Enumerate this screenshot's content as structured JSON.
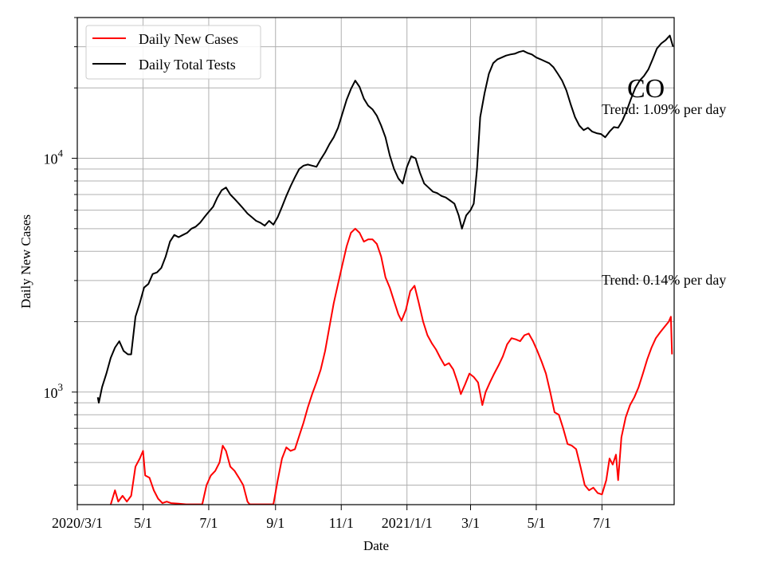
{
  "chart_data": {
    "type": "line",
    "title": "",
    "xlabel": "Date",
    "ylabel": "Daily New Cases",
    "yscale": "log",
    "grid": true,
    "legend_position": "top-left",
    "x_range": [
      "2020-03-01",
      "2021-09-06"
    ],
    "ylim": [
      330,
      40000
    ],
    "x_ticks": [
      {
        "date": "2020-03-01",
        "label": "2020/3/1"
      },
      {
        "date": "2020-05-01",
        "label": "5/1"
      },
      {
        "date": "2020-07-01",
        "label": "7/1"
      },
      {
        "date": "2020-09-01",
        "label": "9/1"
      },
      {
        "date": "2020-11-01",
        "label": "11/1"
      },
      {
        "date": "2021-01-01",
        "label": "2021/1/1"
      },
      {
        "date": "2021-03-01",
        "label": "3/1"
      },
      {
        "date": "2021-05-01",
        "label": "5/1"
      },
      {
        "date": "2021-07-01",
        "label": "7/1"
      }
    ],
    "y_ticks": [
      {
        "value": 1000,
        "base": "10",
        "exp": "3"
      },
      {
        "value": 10000,
        "base": "10",
        "exp": "4"
      }
    ],
    "series": [
      {
        "name": "Daily New Cases",
        "color": "#ff0000",
        "points": [
          [
            "2020-04-01",
            330
          ],
          [
            "2020-04-05",
            380
          ],
          [
            "2020-04-08",
            340
          ],
          [
            "2020-04-12",
            360
          ],
          [
            "2020-04-16",
            340
          ],
          [
            "2020-04-20",
            360
          ],
          [
            "2020-04-24",
            480
          ],
          [
            "2020-04-28",
            520
          ],
          [
            "2020-05-01",
            560
          ],
          [
            "2020-05-03",
            440
          ],
          [
            "2020-05-07",
            430
          ],
          [
            "2020-05-11",
            380
          ],
          [
            "2020-05-15",
            350
          ],
          [
            "2020-05-19",
            335
          ],
          [
            "2020-05-23",
            340
          ],
          [
            "2020-05-27",
            335
          ],
          [
            "2020-06-03",
            333
          ],
          [
            "2020-06-10",
            331
          ],
          [
            "2020-06-25",
            331
          ],
          [
            "2020-06-29",
            400
          ],
          [
            "2020-07-03",
            440
          ],
          [
            "2020-07-07",
            460
          ],
          [
            "2020-07-11",
            500
          ],
          [
            "2020-07-14",
            590
          ],
          [
            "2020-07-17",
            560
          ],
          [
            "2020-07-21",
            480
          ],
          [
            "2020-07-25",
            460
          ],
          [
            "2020-07-29",
            430
          ],
          [
            "2020-08-02",
            400
          ],
          [
            "2020-08-06",
            340
          ],
          [
            "2020-08-08",
            331
          ],
          [
            "2020-08-30",
            331
          ],
          [
            "2020-09-03",
            420
          ],
          [
            "2020-09-07",
            520
          ],
          [
            "2020-09-11",
            580
          ],
          [
            "2020-09-15",
            560
          ],
          [
            "2020-09-19",
            570
          ],
          [
            "2020-09-23",
            650
          ],
          [
            "2020-09-27",
            740
          ],
          [
            "2020-10-01",
            860
          ],
          [
            "2020-10-05",
            980
          ],
          [
            "2020-10-09",
            1100
          ],
          [
            "2020-10-13",
            1250
          ],
          [
            "2020-10-17",
            1500
          ],
          [
            "2020-10-21",
            1900
          ],
          [
            "2020-10-25",
            2400
          ],
          [
            "2020-10-29",
            2900
          ],
          [
            "2020-11-02",
            3500
          ],
          [
            "2020-11-06",
            4200
          ],
          [
            "2020-11-10",
            4800
          ],
          [
            "2020-11-14",
            5000
          ],
          [
            "2020-11-18",
            4800
          ],
          [
            "2020-11-22",
            4400
          ],
          [
            "2020-11-26",
            4500
          ],
          [
            "2020-11-30",
            4500
          ],
          [
            "2020-12-04",
            4300
          ],
          [
            "2020-12-08",
            3800
          ],
          [
            "2020-12-12",
            3100
          ],
          [
            "2020-12-16",
            2800
          ],
          [
            "2020-12-20",
            2450
          ],
          [
            "2020-12-24",
            2150
          ],
          [
            "2020-12-27",
            2020
          ],
          [
            "2020-12-31",
            2250
          ],
          [
            "2021-01-04",
            2700
          ],
          [
            "2021-01-08",
            2850
          ],
          [
            "2021-01-12",
            2400
          ],
          [
            "2021-01-16",
            2000
          ],
          [
            "2021-01-20",
            1750
          ],
          [
            "2021-01-24",
            1620
          ],
          [
            "2021-01-28",
            1520
          ],
          [
            "2021-02-01",
            1400
          ],
          [
            "2021-02-05",
            1300
          ],
          [
            "2021-02-09",
            1330
          ],
          [
            "2021-02-13",
            1250
          ],
          [
            "2021-02-17",
            1100
          ],
          [
            "2021-02-20",
            980
          ],
          [
            "2021-02-24",
            1080
          ],
          [
            "2021-02-28",
            1200
          ],
          [
            "2021-03-04",
            1160
          ],
          [
            "2021-03-08",
            1100
          ],
          [
            "2021-03-12",
            880
          ],
          [
            "2021-03-15",
            1000
          ],
          [
            "2021-03-19",
            1100
          ],
          [
            "2021-03-23",
            1200
          ],
          [
            "2021-03-27",
            1300
          ],
          [
            "2021-03-31",
            1420
          ],
          [
            "2021-04-04",
            1600
          ],
          [
            "2021-04-08",
            1700
          ],
          [
            "2021-04-12",
            1680
          ],
          [
            "2021-04-16",
            1650
          ],
          [
            "2021-04-20",
            1750
          ],
          [
            "2021-04-24",
            1780
          ],
          [
            "2021-04-28",
            1650
          ],
          [
            "2021-05-02",
            1500
          ],
          [
            "2021-05-06",
            1350
          ],
          [
            "2021-05-10",
            1200
          ],
          [
            "2021-05-14",
            1000
          ],
          [
            "2021-05-18",
            820
          ],
          [
            "2021-05-22",
            800
          ],
          [
            "2021-05-26",
            700
          ],
          [
            "2021-05-30",
            600
          ],
          [
            "2021-06-03",
            590
          ],
          [
            "2021-06-07",
            570
          ],
          [
            "2021-06-11",
            480
          ],
          [
            "2021-06-15",
            400
          ],
          [
            "2021-06-19",
            380
          ],
          [
            "2021-06-23",
            390
          ],
          [
            "2021-06-27",
            370
          ],
          [
            "2021-07-01",
            365
          ],
          [
            "2021-07-05",
            420
          ],
          [
            "2021-07-08",
            520
          ],
          [
            "2021-07-11",
            490
          ],
          [
            "2021-07-14",
            540
          ],
          [
            "2021-07-16",
            420
          ],
          [
            "2021-07-19",
            640
          ],
          [
            "2021-07-23",
            780
          ],
          [
            "2021-07-27",
            880
          ],
          [
            "2021-07-31",
            950
          ],
          [
            "2021-08-04",
            1050
          ],
          [
            "2021-08-08",
            1200
          ],
          [
            "2021-08-12",
            1380
          ],
          [
            "2021-08-16",
            1550
          ],
          [
            "2021-08-20",
            1700
          ],
          [
            "2021-08-24",
            1800
          ],
          [
            "2021-08-28",
            1900
          ],
          [
            "2021-09-01",
            2000
          ],
          [
            "2021-09-03",
            2100
          ],
          [
            "2021-09-04",
            1450
          ]
        ]
      },
      {
        "name": "Daily Total Tests",
        "color": "#000000",
        "points": [
          [
            "2020-03-20",
            950
          ],
          [
            "2020-03-21",
            900
          ],
          [
            "2020-03-24",
            1050
          ],
          [
            "2020-03-28",
            1200
          ],
          [
            "2020-04-01",
            1400
          ],
          [
            "2020-04-05",
            1550
          ],
          [
            "2020-04-09",
            1650
          ],
          [
            "2020-04-13",
            1500
          ],
          [
            "2020-04-17",
            1450
          ],
          [
            "2020-04-20",
            1450
          ],
          [
            "2020-04-24",
            2100
          ],
          [
            "2020-04-28",
            2400
          ],
          [
            "2020-05-02",
            2800
          ],
          [
            "2020-05-06",
            2900
          ],
          [
            "2020-05-10",
            3200
          ],
          [
            "2020-05-14",
            3250
          ],
          [
            "2020-05-18",
            3400
          ],
          [
            "2020-05-22",
            3800
          ],
          [
            "2020-05-26",
            4400
          ],
          [
            "2020-05-30",
            4700
          ],
          [
            "2020-06-03",
            4600
          ],
          [
            "2020-06-07",
            4700
          ],
          [
            "2020-06-11",
            4800
          ],
          [
            "2020-06-15",
            5000
          ],
          [
            "2020-06-19",
            5100
          ],
          [
            "2020-06-23",
            5300
          ],
          [
            "2020-06-27",
            5600
          ],
          [
            "2020-07-01",
            5900
          ],
          [
            "2020-07-05",
            6200
          ],
          [
            "2020-07-09",
            6800
          ],
          [
            "2020-07-13",
            7300
          ],
          [
            "2020-07-17",
            7500
          ],
          [
            "2020-07-21",
            7000
          ],
          [
            "2020-07-25",
            6700
          ],
          [
            "2020-07-29",
            6400
          ],
          [
            "2020-08-02",
            6100
          ],
          [
            "2020-08-06",
            5800
          ],
          [
            "2020-08-10",
            5600
          ],
          [
            "2020-08-14",
            5400
          ],
          [
            "2020-08-18",
            5300
          ],
          [
            "2020-08-22",
            5150
          ],
          [
            "2020-08-26",
            5400
          ],
          [
            "2020-08-30",
            5200
          ],
          [
            "2020-09-03",
            5600
          ],
          [
            "2020-09-07",
            6200
          ],
          [
            "2020-09-11",
            6900
          ],
          [
            "2020-09-15",
            7600
          ],
          [
            "2020-09-19",
            8300
          ],
          [
            "2020-09-23",
            9000
          ],
          [
            "2020-09-27",
            9300
          ],
          [
            "2020-10-01",
            9400
          ],
          [
            "2020-10-05",
            9300
          ],
          [
            "2020-10-09",
            9200
          ],
          [
            "2020-10-13",
            9900
          ],
          [
            "2020-10-17",
            10600
          ],
          [
            "2020-10-21",
            11500
          ],
          [
            "2020-10-25",
            12300
          ],
          [
            "2020-10-29",
            13500
          ],
          [
            "2020-11-02",
            15500
          ],
          [
            "2020-11-06",
            17800
          ],
          [
            "2020-11-10",
            19800
          ],
          [
            "2020-11-14",
            21500
          ],
          [
            "2020-11-18",
            20200
          ],
          [
            "2020-11-22",
            18000
          ],
          [
            "2020-11-26",
            16800
          ],
          [
            "2020-11-30",
            16200
          ],
          [
            "2020-12-04",
            15200
          ],
          [
            "2020-12-08",
            13800
          ],
          [
            "2020-12-12",
            12300
          ],
          [
            "2020-12-16",
            10300
          ],
          [
            "2020-12-20",
            9000
          ],
          [
            "2020-12-24",
            8200
          ],
          [
            "2020-12-28",
            7800
          ],
          [
            "2021-01-01",
            9200
          ],
          [
            "2021-01-05",
            10200
          ],
          [
            "2021-01-09",
            10000
          ],
          [
            "2021-01-13",
            8700
          ],
          [
            "2021-01-17",
            7800
          ],
          [
            "2021-01-21",
            7500
          ],
          [
            "2021-01-25",
            7200
          ],
          [
            "2021-01-29",
            7100
          ],
          [
            "2021-02-02",
            6900
          ],
          [
            "2021-02-06",
            6800
          ],
          [
            "2021-02-10",
            6600
          ],
          [
            "2021-02-14",
            6400
          ],
          [
            "2021-02-18",
            5700
          ],
          [
            "2021-02-21",
            5000
          ],
          [
            "2021-02-25",
            5700
          ],
          [
            "2021-03-01",
            6000
          ],
          [
            "2021-03-04",
            6400
          ],
          [
            "2021-03-07",
            9000
          ],
          [
            "2021-03-10",
            15000
          ],
          [
            "2021-03-14",
            19000
          ],
          [
            "2021-03-18",
            23000
          ],
          [
            "2021-03-22",
            25500
          ],
          [
            "2021-03-26",
            26500
          ],
          [
            "2021-03-30",
            27000
          ],
          [
            "2021-04-03",
            27500
          ],
          [
            "2021-04-07",
            27800
          ],
          [
            "2021-04-11",
            28000
          ],
          [
            "2021-04-15",
            28500
          ],
          [
            "2021-04-19",
            28800
          ],
          [
            "2021-04-23",
            28200
          ],
          [
            "2021-04-27",
            27800
          ],
          [
            "2021-05-01",
            27000
          ],
          [
            "2021-05-05",
            26500
          ],
          [
            "2021-05-09",
            26000
          ],
          [
            "2021-05-13",
            25500
          ],
          [
            "2021-05-17",
            24500
          ],
          [
            "2021-05-21",
            23000
          ],
          [
            "2021-05-25",
            21500
          ],
          [
            "2021-05-29",
            19500
          ],
          [
            "2021-06-02",
            17000
          ],
          [
            "2021-06-06",
            15000
          ],
          [
            "2021-06-10",
            13800
          ],
          [
            "2021-06-14",
            13200
          ],
          [
            "2021-06-18",
            13500
          ],
          [
            "2021-06-22",
            13000
          ],
          [
            "2021-06-26",
            12800
          ],
          [
            "2021-06-30",
            12700
          ],
          [
            "2021-07-04",
            12300
          ],
          [
            "2021-07-08",
            13000
          ],
          [
            "2021-07-12",
            13600
          ],
          [
            "2021-07-16",
            13500
          ],
          [
            "2021-07-20",
            14500
          ],
          [
            "2021-07-24",
            16000
          ],
          [
            "2021-07-28",
            18000
          ],
          [
            "2021-08-01",
            20000
          ],
          [
            "2021-08-05",
            21500
          ],
          [
            "2021-08-09",
            22500
          ],
          [
            "2021-08-13",
            24000
          ],
          [
            "2021-08-17",
            26500
          ],
          [
            "2021-08-21",
            29500
          ],
          [
            "2021-08-25",
            31000
          ],
          [
            "2021-08-29",
            32000
          ],
          [
            "2021-09-02",
            33500
          ],
          [
            "2021-09-05",
            30000
          ]
        ]
      }
    ],
    "annotations": [
      {
        "text": "CO",
        "kind": "state-label"
      },
      {
        "text": "Trend: 1.09% per day",
        "series": "Daily Total Tests"
      },
      {
        "text": "Trend: 0.14% per day",
        "series": "Daily New Cases"
      }
    ]
  }
}
